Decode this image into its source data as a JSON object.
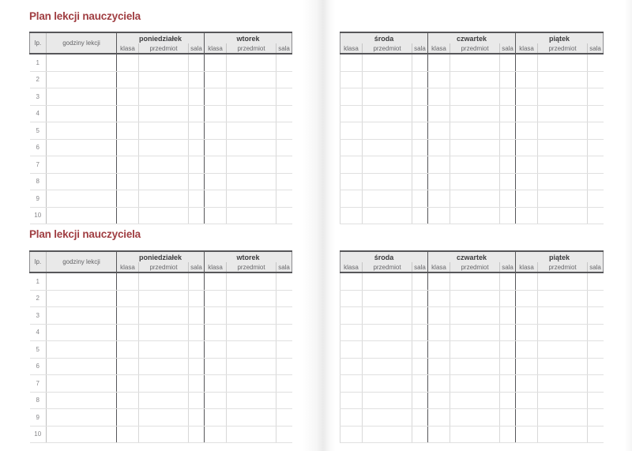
{
  "colors": {
    "title": "#a03e42",
    "header_bg": "#e9e9e9",
    "dark_line": "#57575a",
    "light_line": "#e0e0e0"
  },
  "left_page": {
    "titles": [
      "Plan lekcji nauczyciela",
      "Plan lekcji nauczyciela"
    ],
    "lp_header": "lp.",
    "hours_header": "godziny lekcji",
    "day_groups": [
      "poniedziałek",
      "wtorek"
    ],
    "sub_headers": [
      "klasa",
      "przedmiot",
      "sala"
    ]
  },
  "right_page": {
    "day_groups": [
      "środa",
      "czwartek",
      "piątek"
    ],
    "sub_headers": [
      "klasa",
      "przedmiot",
      "sala"
    ]
  },
  "rows": {
    "numbers": [
      "1",
      "2",
      "3",
      "4",
      "5",
      "6",
      "7",
      "8",
      "9",
      "10"
    ]
  }
}
